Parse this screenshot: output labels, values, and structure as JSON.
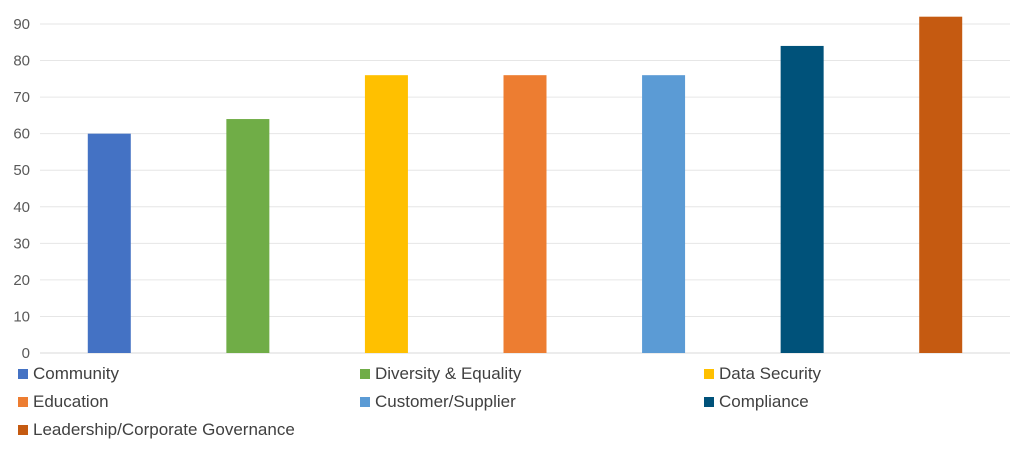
{
  "chart_data": {
    "type": "bar",
    "categories": [
      "Community",
      "Diversity & Equality",
      "Data Security",
      "Education",
      "Customer/Supplier",
      "Compliance",
      "Leadership/Corporate Governance"
    ],
    "values": [
      60,
      64,
      76,
      76,
      76,
      84,
      92
    ],
    "colors": [
      "#4472C4",
      "#70AD47",
      "#FFC000",
      "#ED7D31",
      "#5B9BD5",
      "#00527A",
      "#C55A11"
    ],
    "ylim": [
      0,
      90
    ],
    "yticks": [
      0,
      10,
      20,
      30,
      40,
      50,
      60,
      70,
      80,
      90
    ],
    "grid": true,
    "legend_position": "bottom",
    "title": "",
    "xlabel": "",
    "ylabel": ""
  },
  "legend": [
    {
      "label": "Community",
      "color": "#4472C4"
    },
    {
      "label": "Diversity & Equality",
      "color": "#70AD47"
    },
    {
      "label": "Data Security",
      "color": "#FFC000"
    },
    {
      "label": "Education",
      "color": "#ED7D31"
    },
    {
      "label": "Customer/Supplier",
      "color": "#5B9BD5"
    },
    {
      "label": "Compliance",
      "color": "#00527A"
    },
    {
      "label": "Leadership/Corporate Governance",
      "color": "#C55A11"
    }
  ]
}
